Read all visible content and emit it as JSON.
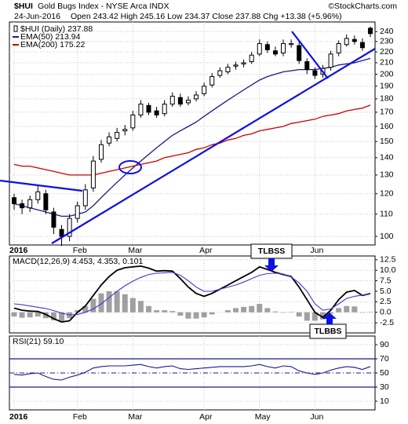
{
  "chart_data": [
    {
      "type": "candlestick",
      "symbol": "$HUI",
      "title": "Gold Bugs Index - NYSE Arca INDX",
      "source": "©StockCharts.com",
      "date": "24-Jun-2016",
      "summary": "Open 243.42 High 245.16 Low 234.37 Close 237.88 Chg +13.38 (+5.96%)",
      "price_name": "$HUI (Daily) 237.88",
      "color": "#000000",
      "categories": [
        "2016",
        null,
        null,
        null,
        null,
        null,
        null,
        null,
        "Feb",
        null,
        null,
        null,
        null,
        null,
        null,
        "Mar",
        null,
        null,
        null,
        null,
        null,
        null,
        null,
        null,
        "Apr",
        null,
        null,
        null,
        null,
        null,
        null,
        "May",
        null,
        null,
        null,
        null,
        null,
        null,
        "Jun",
        null,
        null,
        null,
        null,
        null,
        null,
        null
      ],
      "open": [
        118,
        115,
        113,
        117,
        120,
        111,
        103,
        100,
        108,
        114,
        123,
        139,
        149,
        152,
        157,
        159,
        168,
        175,
        171,
        169,
        176,
        181,
        177,
        180,
        184,
        191,
        199,
        202,
        207,
        209,
        211,
        218,
        227,
        221,
        219,
        227,
        226,
        211,
        203,
        200,
        206,
        219,
        227,
        232,
        229,
        243.42
      ],
      "high": [
        120,
        117,
        119,
        124,
        122,
        113,
        105,
        110,
        116,
        125,
        141,
        151,
        156,
        159,
        161,
        171,
        179,
        177,
        174,
        179,
        185,
        184,
        182,
        186,
        193,
        201,
        206,
        209,
        211,
        213,
        220,
        232,
        230,
        225,
        232,
        232,
        230,
        214,
        206,
        208,
        221,
        231,
        237,
        236,
        233,
        245.16
      ],
      "low": [
        112,
        110,
        111,
        115,
        110,
        101,
        96,
        98,
        106,
        112,
        121,
        137,
        147,
        150,
        154,
        157,
        166,
        168,
        166,
        167,
        174,
        174,
        175,
        178,
        182,
        189,
        197,
        200,
        204,
        206,
        209,
        216,
        219,
        216,
        216,
        224,
        209,
        200,
        196,
        197,
        203,
        216,
        225,
        227,
        221,
        234.37
      ],
      "close": [
        115,
        113,
        117,
        121,
        112,
        104,
        100,
        108,
        114,
        122,
        138,
        148,
        153,
        156,
        158,
        168,
        176,
        170,
        168,
        176,
        182,
        176,
        179,
        183,
        190,
        198,
        203,
        206,
        208,
        210,
        217,
        228,
        222,
        218,
        228,
        228,
        212,
        204,
        199,
        205,
        218,
        228,
        233,
        230,
        224,
        237.88
      ],
      "series": [
        {
          "name": "EMA(50) 213.94",
          "color": "#1a1a8c",
          "values": [
            115,
            114,
            113,
            112,
            111,
            110,
            109,
            109,
            110,
            111,
            114,
            118,
            122,
            126,
            130,
            134,
            138,
            142,
            146,
            150,
            154,
            157,
            160,
            163,
            167,
            171,
            175,
            179,
            183,
            187,
            191,
            195,
            198,
            200,
            202,
            203,
            204,
            204,
            204,
            205,
            206,
            208,
            209,
            210,
            212,
            213.94
          ]
        },
        {
          "name": "EMA(200) 175.22",
          "color": "#cc0000",
          "values": [
            136,
            135,
            135,
            134,
            133,
            132,
            131,
            130,
            130,
            130,
            130,
            131,
            132,
            133,
            134,
            135,
            136,
            137,
            138,
            140,
            141,
            142,
            143,
            145,
            146,
            148,
            149,
            151,
            152,
            154,
            155,
            157,
            158,
            159,
            160,
            162,
            163,
            164,
            165,
            167,
            168,
            169,
            171,
            172,
            173,
            175.22
          ]
        }
      ],
      "log_scale": true,
      "grid": true,
      "ylim": [
        96.4,
        250
      ],
      "yticks": [
        100,
        110,
        120,
        130,
        140,
        150,
        160,
        170,
        180,
        190,
        200,
        210,
        220,
        230,
        240
      ]
    },
    {
      "type": "macd",
      "title": "MACD(12,26,9) 4.453, 4.353, 0.101",
      "series": [
        {
          "color": "#888888",
          "kind": "histogram",
          "values": [
            -1.0,
            -1.3,
            -1.2,
            -1.0,
            -1.4,
            -1.9,
            -2.1,
            -1.4,
            0.5,
            1.5,
            3.2,
            4.5,
            5.0,
            5.0,
            4.3,
            3.4,
            2.7,
            1.5,
            0.5,
            0.5,
            0.3,
            -0.8,
            -1.5,
            -1.5,
            -1.2,
            -0.5,
            0.0,
            0.5,
            1.0,
            1.3,
            1.5,
            2.0,
            1.0,
            0.2,
            -0.1,
            0.1,
            -1.0,
            -2.0,
            -2.0,
            -1.7,
            -0.3,
            1.0,
            1.5,
            1.4,
            -0.1,
            0.101
          ]
        },
        {
          "color": "#000000",
          "kind": "line",
          "values": [
            1.0,
            0.5,
            0.3,
            0.2,
            -0.5,
            -1.5,
            -2.3,
            -2.0,
            0.0,
            1.5,
            4.0,
            6.5,
            8.5,
            10.0,
            10.6,
            10.8,
            11.0,
            10.5,
            9.8,
            9.9,
            9.8,
            8.0,
            6.0,
            4.5,
            3.8,
            4.5,
            5.5,
            6.5,
            7.5,
            8.5,
            9.5,
            10.8,
            10.2,
            9.5,
            9.0,
            8.5,
            6.0,
            3.0,
            0.0,
            -1.2,
            0.5,
            3.0,
            4.8,
            5.2,
            4.0,
            4.453
          ]
        },
        {
          "color": "#3a3ad0",
          "kind": "line",
          "values": [
            2.0,
            1.8,
            1.5,
            1.2,
            0.9,
            0.4,
            -0.2,
            -0.6,
            -0.5,
            0.0,
            0.8,
            2.0,
            3.5,
            5.0,
            6.3,
            7.4,
            8.3,
            9.0,
            9.3,
            9.4,
            9.5,
            8.8,
            7.5,
            6.0,
            5.0,
            5.0,
            5.5,
            6.0,
            6.5,
            7.2,
            8.0,
            8.8,
            9.2,
            9.3,
            9.1,
            8.4,
            7.0,
            5.0,
            2.0,
            0.5,
            0.8,
            2.0,
            3.3,
            3.8,
            4.1,
            4.353
          ]
        }
      ],
      "annotations": [
        "TLBSS",
        "TLBBS"
      ],
      "grid": true,
      "ylim": [
        -4.9,
        13.4
      ],
      "yticks": [
        {
          "value": 12.5,
          "label": "12.5"
        },
        {
          "value": 10,
          "label": "10.0"
        },
        7.5,
        {
          "value": 5,
          "label": "5.0"
        },
        2.5,
        {
          "value": 0,
          "label": "0.0"
        },
        -2.5
      ]
    },
    {
      "type": "line",
      "title": "RSI(21) 59.10",
      "color": "#1a1a8c",
      "values": [
        48,
        47,
        49,
        50,
        45,
        41,
        40,
        44,
        47,
        51,
        57,
        59,
        60,
        60,
        60,
        61,
        62,
        59,
        57,
        59,
        60,
        56,
        55,
        56,
        57,
        58,
        59,
        59,
        59,
        59,
        60,
        62,
        59,
        57,
        60,
        59,
        53,
        50,
        48,
        50,
        54,
        57,
        59,
        58,
        55,
        59.1
      ],
      "levels": [
        70,
        30
      ],
      "level_color": "#1a1a8c",
      "midline": 50,
      "grid": true,
      "ylim": [
        -2.2,
        102.2
      ],
      "yticks": [
        90,
        70,
        50,
        30,
        10
      ]
    }
  ]
}
